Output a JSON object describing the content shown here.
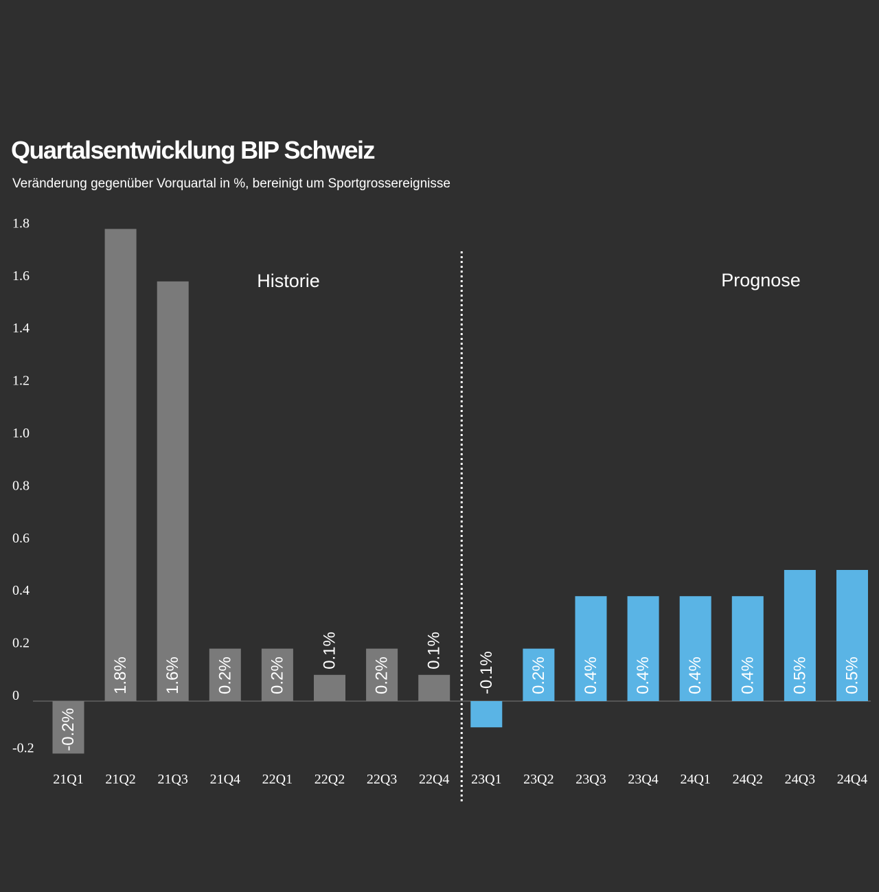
{
  "title": "Quartalsentwicklung BIP Schweiz",
  "subtitle": "Veränderung gegenüber Vorquartal in %, bereinigt um Sportgrossereignisse",
  "chart_data": {
    "type": "bar",
    "categories": [
      "21Q1",
      "21Q2",
      "21Q3",
      "21Q4",
      "22Q1",
      "22Q2",
      "22Q3",
      "22Q4",
      "23Q1",
      "23Q2",
      "23Q3",
      "23Q4",
      "24Q1",
      "24Q2",
      "24Q3",
      "24Q4"
    ],
    "values": [
      -0.2,
      1.8,
      1.6,
      0.2,
      0.2,
      0.1,
      0.2,
      0.1,
      -0.1,
      0.2,
      0.4,
      0.4,
      0.4,
      0.4,
      0.5,
      0.5
    ],
    "data_labels": [
      "-0.2%",
      "1.8%",
      "1.6%",
      "0.2%",
      "0.2%",
      "0.1%",
      "0.2%",
      "0.1%",
      "-0.1%",
      "0.2%",
      "0.4%",
      "0.4%",
      "0.4%",
      "0.4%",
      "0.5%",
      "0.5%"
    ],
    "segments": [
      "Historie",
      "Historie",
      "Historie",
      "Historie",
      "Historie",
      "Historie",
      "Historie",
      "Historie",
      "Prognose",
      "Prognose",
      "Prognose",
      "Prognose",
      "Prognose",
      "Prognose",
      "Prognose",
      "Prognose"
    ],
    "annotations": [
      "Historie",
      "Prognose"
    ],
    "yticks": [
      -0.2,
      0,
      0.2,
      0.4,
      0.6,
      0.8,
      1.0,
      1.2,
      1.4,
      1.6,
      1.8
    ],
    "ytick_labels": [
      "-0.2",
      "0",
      "0.2",
      "0.4",
      "0.6",
      "0.8",
      "1.0",
      "1.2",
      "1.4",
      "1.6",
      "1.8"
    ],
    "ylim": [
      -0.2,
      1.8
    ],
    "grid": false,
    "legend": "none",
    "colors": {
      "Historie": "#7a7a7a",
      "Prognose": "#5ab4e5",
      "background": "#2f2f2f",
      "text": "#ffffff",
      "axis": "#555555"
    }
  }
}
